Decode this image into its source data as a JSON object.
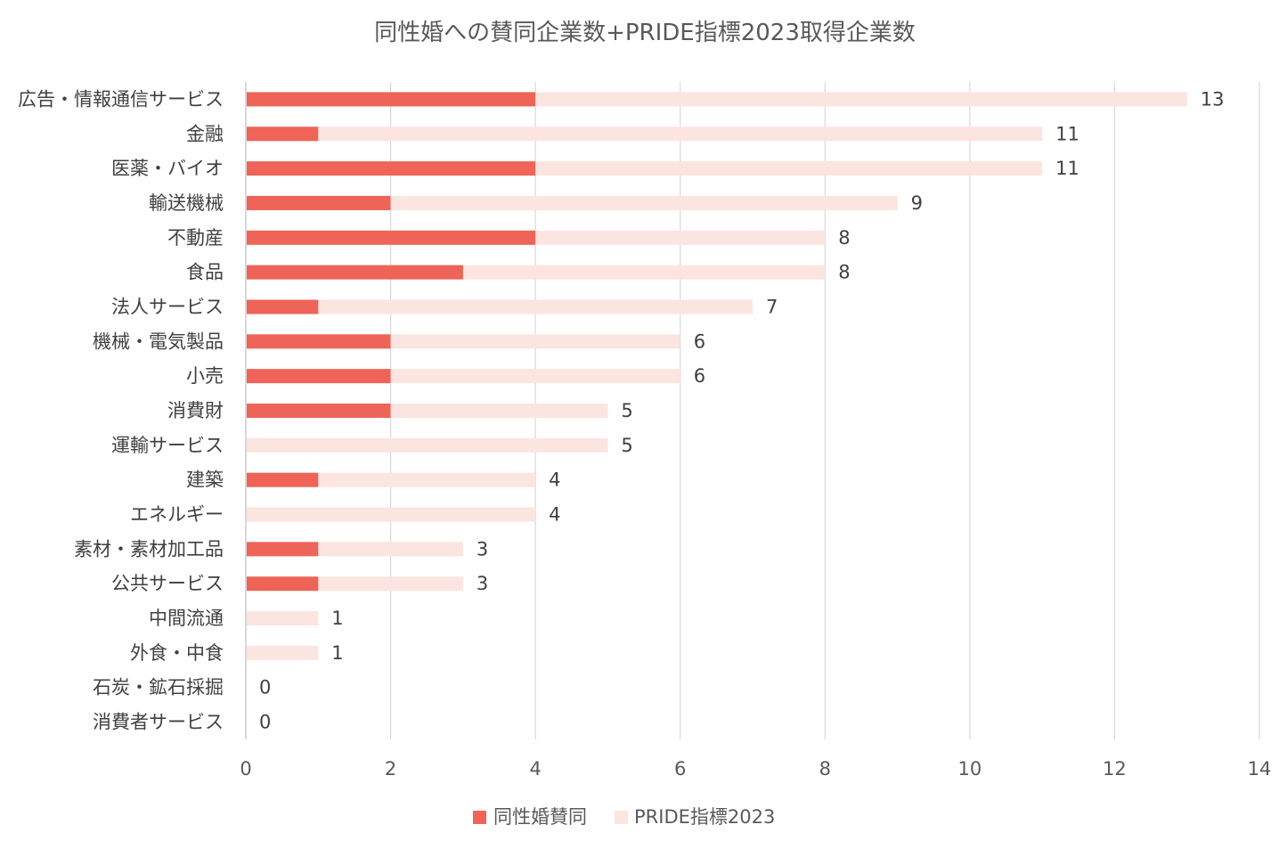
{
  "chart_data": {
    "type": "bar",
    "orientation": "horizontal",
    "stacked": false,
    "overlapping": true,
    "title": "同性婚への賛同企業数+PRIDE指標2023取得企業数",
    "categories": [
      "広告・情報通信サービス",
      "金融",
      "医薬・バイオ",
      "輸送機械",
      "不動産",
      "食品",
      "法人サービス",
      "機械・電気製品",
      "小売",
      "消費財",
      "運輸サービス",
      "建築",
      "エネルギー",
      "素材・素材加工品",
      "公共サービス",
      "中間流通",
      "外食・中食",
      "石炭・鉱石採掘",
      "消費者サービス"
    ],
    "series": [
      {
        "name": "同性婚賛同",
        "color": "#ee6458",
        "values": [
          4,
          1,
          4,
          2,
          4,
          3,
          1,
          2,
          2,
          2,
          0,
          1,
          0,
          1,
          1,
          0,
          0,
          0,
          0
        ]
      },
      {
        "name": "PRIDE指標2023",
        "color": "#fce4e0",
        "values": [
          13,
          11,
          11,
          9,
          8,
          8,
          7,
          6,
          6,
          5,
          5,
          4,
          4,
          3,
          3,
          1,
          1,
          0,
          0
        ]
      }
    ],
    "data_labels": [
      "13",
      "11",
      "11",
      "9",
      "8",
      "8",
      "7",
      "6",
      "6",
      "5",
      "5",
      "4",
      "4",
      "3",
      "3",
      "1",
      "1",
      "0",
      "0"
    ],
    "x_ticks": [
      "0",
      "2",
      "4",
      "6",
      "8",
      "10",
      "12",
      "14"
    ],
    "xlim": [
      0,
      14
    ],
    "grid": true,
    "legend_position": "bottom"
  }
}
